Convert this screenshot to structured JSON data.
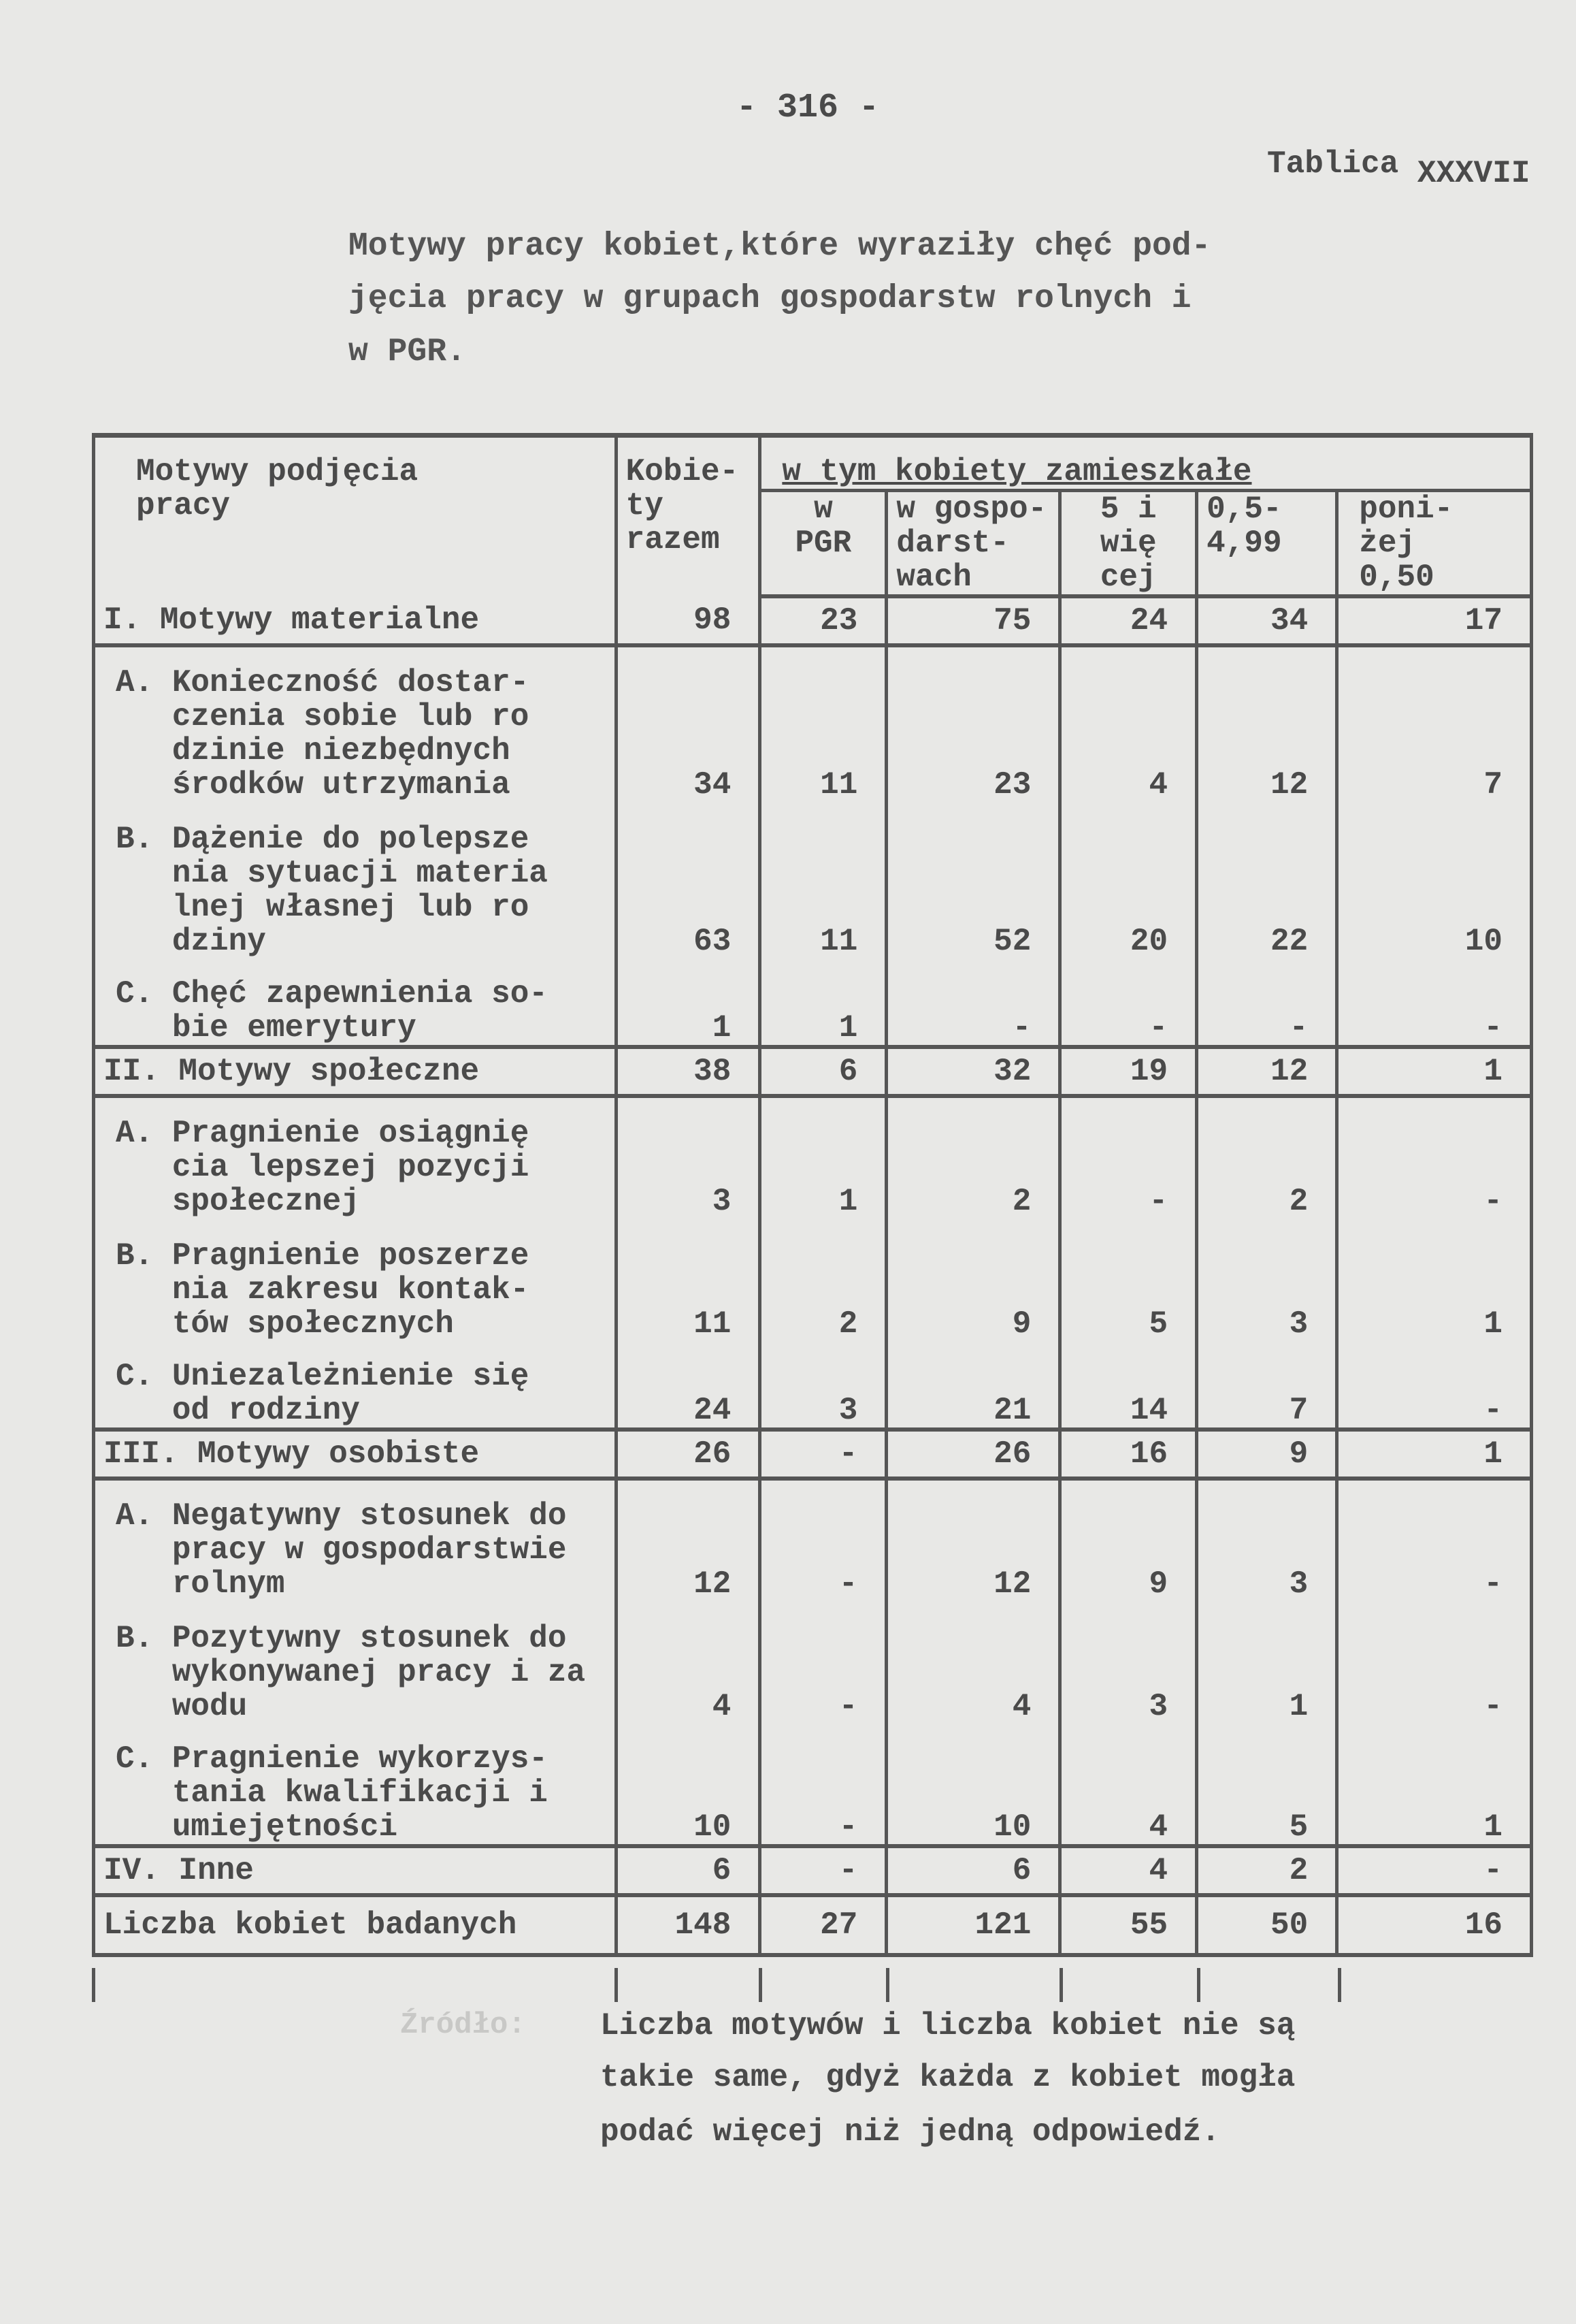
{
  "page_number": "- 316 -",
  "table_label": {
    "word": "Tablica",
    "number": "XXXVII"
  },
  "title_lines": [
    "Motywy pracy kobiet,które wyraziły chęć pod-",
    "jęcia pracy w grupach gospodarstw rolnych i",
    "w PGR."
  ],
  "headers": {
    "motive": "Motywy podjęcia\npracy",
    "total": "Kobie-\nty\nrazem",
    "group": "w tym kobiety zamieszkałe",
    "pgr": "w\nPGR",
    "farms": "w gospo-\ndarst-\nwach",
    "ha5": "5 i\nwię\ncej",
    "ha05": "0,5-\n4,99",
    "below": "poni-\nżej\n0,50"
  },
  "rows": [
    {
      "type": "section",
      "label": "I. Motywy materialne",
      "values": [
        "98",
        "23",
        "75",
        "24",
        "34",
        "17"
      ]
    },
    {
      "type": "item",
      "label": "A. Konieczność dostar-\n   czenia sobie lub ro\n   dzinie niezbędnych\n   środków utrzymania",
      "values": [
        "34",
        "11",
        "23",
        "4",
        "12",
        "7"
      ]
    },
    {
      "type": "item",
      "label": "B. Dążenie do polepsze\n   nia sytuacji materia\n   lnej własnej lub ro\n   dziny",
      "values": [
        "63",
        "11",
        "52",
        "20",
        "22",
        "10"
      ]
    },
    {
      "type": "item-last",
      "label": "C. Chęć zapewnienia so-\n   bie emerytury",
      "values": [
        "1",
        "1",
        "-",
        "-",
        "-",
        "-"
      ]
    },
    {
      "type": "section",
      "label": "II. Motywy społeczne",
      "values": [
        "38",
        "6",
        "32",
        "19",
        "12",
        "1"
      ]
    },
    {
      "type": "item",
      "label": "A. Pragnienie osiągnię\n   cia lepszej pozycji\n   społecznej",
      "values": [
        "3",
        "1",
        "2",
        "-",
        "2",
        "-"
      ]
    },
    {
      "type": "item",
      "label": "B. Pragnienie poszerze\n   nia zakresu kontak-\n   tów społecznych",
      "values": [
        "11",
        "2",
        "9",
        "5",
        "3",
        "1"
      ]
    },
    {
      "type": "item-last",
      "label": "C. Uniezależnienie się\n   od rodziny",
      "values": [
        "24",
        "3",
        "21",
        "14",
        "7",
        "-"
      ]
    },
    {
      "type": "section",
      "label": "III. Motywy osobiste",
      "values": [
        "26",
        "-",
        "26",
        "16",
        "9",
        "1"
      ]
    },
    {
      "type": "item",
      "label": "A. Negatywny stosunek do\n   pracy w gospodarstwie\n   rolnym",
      "values": [
        "12",
        "-",
        "12",
        "9",
        "3",
        "-"
      ]
    },
    {
      "type": "item",
      "label": "B. Pozytywny stosunek do\n   wykonywanej pracy i za\n   wodu",
      "values": [
        "4",
        "-",
        "4",
        "3",
        "1",
        "-"
      ]
    },
    {
      "type": "item-last",
      "label": "C. Pragnienie wykorzys-\n   tania kwalifikacji i\n   umiejętności",
      "values": [
        "10",
        "-",
        "10",
        "4",
        "5",
        "1"
      ]
    },
    {
      "type": "section",
      "label": "IV. Inne",
      "values": [
        "6",
        "-",
        "6",
        "4",
        "2",
        "-"
      ]
    },
    {
      "type": "total",
      "label": "Liczba kobiet badanych",
      "values": [
        "148",
        "27",
        "121",
        "55",
        "50",
        "16"
      ]
    }
  ],
  "source_label": "Źródło:",
  "footnote_lines": [
    "Liczba motywów i liczba kobiet nie są",
    "takie same, gdyż każda z kobiet mogła",
    "podać więcej niż jedną odpowiedź."
  ]
}
